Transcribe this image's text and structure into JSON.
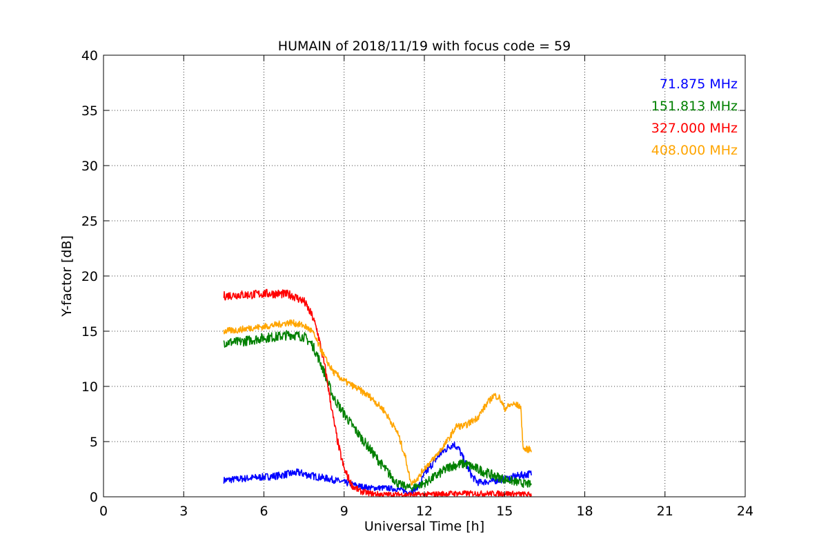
{
  "chart_data": {
    "type": "line",
    "title": "HUMAIN of 2018/11/19 with focus code = 59",
    "xlabel": "Universal Time [h]",
    "ylabel": "Y-factor [dB]",
    "xlim": [
      0,
      24
    ],
    "ylim": [
      0,
      40
    ],
    "xticks": [
      0,
      3,
      6,
      9,
      12,
      15,
      18,
      21,
      24
    ],
    "yticks": [
      0,
      5,
      10,
      15,
      20,
      25,
      30,
      35,
      40
    ],
    "grid": true,
    "legend_position": "top-right",
    "series": [
      {
        "name": "71.875 MHz",
        "color": "#0000ff",
        "noise": 0.35,
        "x": [
          4.5,
          5.0,
          5.5,
          6.0,
          6.5,
          7.0,
          7.3,
          7.6,
          8.0,
          8.5,
          9.0,
          9.5,
          10.0,
          10.5,
          11.0,
          11.3,
          11.5,
          11.8,
          12.0,
          12.3,
          12.6,
          12.9,
          13.1,
          13.3,
          13.5,
          13.8,
          14.0,
          14.5,
          15.0,
          15.5,
          16.0
        ],
        "y": [
          1.5,
          1.6,
          1.7,
          1.8,
          1.9,
          2.1,
          2.2,
          2.0,
          1.8,
          1.6,
          1.3,
          1.0,
          0.8,
          0.8,
          0.7,
          0.5,
          0.4,
          1.0,
          2.0,
          3.0,
          3.9,
          4.5,
          4.8,
          4.3,
          3.2,
          1.8,
          1.3,
          1.4,
          1.6,
          1.9,
          2.1
        ]
      },
      {
        "name": "151.813 MHz",
        "color": "#008000",
        "noise": 0.45,
        "x": [
          4.5,
          5.0,
          5.5,
          6.0,
          6.5,
          7.0,
          7.5,
          7.8,
          8.0,
          8.3,
          8.6,
          9.0,
          9.5,
          10.0,
          10.5,
          11.0,
          11.5,
          12.0,
          12.5,
          13.0,
          13.5,
          14.0,
          14.5,
          15.0,
          15.5,
          16.0
        ],
        "y": [
          14.0,
          14.0,
          14.2,
          14.4,
          14.5,
          14.7,
          14.5,
          13.8,
          12.8,
          11.0,
          9.0,
          7.5,
          5.8,
          4.2,
          2.6,
          1.2,
          0.8,
          1.2,
          2.0,
          2.8,
          3.0,
          2.5,
          2.0,
          1.6,
          1.3,
          1.1
        ]
      },
      {
        "name": "327.000 MHz",
        "color": "#ff0000",
        "noise": 0.4,
        "x": [
          4.5,
          5.0,
          5.5,
          6.0,
          6.5,
          7.0,
          7.5,
          7.8,
          8.0,
          8.3,
          8.6,
          8.8,
          9.0,
          9.3,
          9.6,
          10.0,
          10.5,
          11.0,
          12.0,
          13.0,
          14.0,
          15.0,
          16.0
        ],
        "y": [
          18.2,
          18.3,
          18.3,
          18.4,
          18.4,
          18.3,
          17.7,
          16.4,
          15.0,
          11.5,
          7.0,
          4.5,
          2.5,
          1.0,
          0.5,
          0.3,
          0.2,
          0.2,
          0.2,
          0.3,
          0.3,
          0.3,
          0.2
        ]
      },
      {
        "name": "408.000 MHz",
        "color": "#ffa500",
        "noise": 0.3,
        "x": [
          4.5,
          5.0,
          5.5,
          6.0,
          6.5,
          7.0,
          7.5,
          7.8,
          8.0,
          8.3,
          8.6,
          9.0,
          9.5,
          10.0,
          10.5,
          11.0,
          11.3,
          11.5,
          11.8,
          12.0,
          12.3,
          12.6,
          12.9,
          13.2,
          13.5,
          14.0,
          14.3,
          14.6,
          14.8,
          15.0,
          15.3,
          15.6,
          15.7,
          16.0
        ],
        "y": [
          15.0,
          15.1,
          15.3,
          15.4,
          15.6,
          15.8,
          15.5,
          15.0,
          14.0,
          12.5,
          11.3,
          10.5,
          9.8,
          9.0,
          7.8,
          5.8,
          3.5,
          1.2,
          1.8,
          2.6,
          3.3,
          4.2,
          5.2,
          6.4,
          6.4,
          7.2,
          8.3,
          9.2,
          9.0,
          8.0,
          8.4,
          8.2,
          4.3,
          4.3
        ]
      }
    ]
  }
}
